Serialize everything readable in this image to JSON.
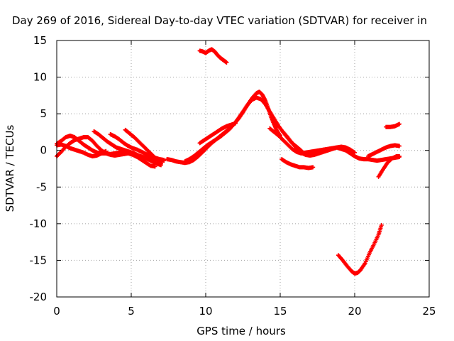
{
  "chart_data": {
    "type": "scatter",
    "title": "Day 269 of 2016, Sidereal Day-to-day VTEC variation (SDTVAR) for receiver in",
    "xlabel": "GPS time / hours",
    "ylabel": "SDTVAR / TECUs",
    "xlim": [
      0,
      25
    ],
    "ylim": [
      -20,
      15
    ],
    "xticks": [
      0,
      5,
      10,
      15,
      20,
      25
    ],
    "yticks": [
      -20,
      -15,
      -10,
      -5,
      0,
      5,
      10,
      15
    ],
    "grid": true,
    "marker_color": "#ff0000",
    "series": [
      {
        "x": [
          0.0,
          0.3,
          0.6,
          0.9,
          1.2,
          1.5,
          1.8,
          2.1,
          2.4,
          2.7,
          3.0,
          3.3,
          3.6,
          3.9,
          4.2,
          4.5,
          4.8,
          5.1,
          5.4,
          5.7,
          6.0,
          6.3,
          6.6,
          6.9,
          7.2
        ],
        "y": [
          0.9,
          1.3,
          1.8,
          2.0,
          1.8,
          1.3,
          0.8,
          0.4,
          0.0,
          -0.3,
          -0.4,
          -0.4,
          -0.5,
          -0.4,
          -0.3,
          -0.2,
          -0.3,
          -0.5,
          -0.7,
          -0.9,
          -1.0,
          -1.1,
          -1.2,
          -1.3,
          -1.4
        ]
      },
      {
        "x": [
          0.0,
          0.3,
          0.6,
          0.9,
          1.2,
          1.5,
          1.8,
          2.1,
          2.4,
          2.7,
          3.0,
          3.3,
          3.6,
          3.9,
          4.2,
          4.5,
          4.8,
          5.1,
          5.4,
          5.7,
          6.0,
          6.3,
          6.6
        ],
        "y": [
          -0.8,
          -0.2,
          0.5,
          1.0,
          1.4,
          1.6,
          1.8,
          1.8,
          1.3,
          0.6,
          0.0,
          -0.4,
          -0.6,
          -0.7,
          -0.6,
          -0.5,
          -0.4,
          -0.6,
          -0.9,
          -1.3,
          -1.7,
          -2.1,
          -2.2
        ]
      },
      {
        "x": [
          0.0,
          0.3,
          0.6,
          0.9,
          1.2,
          1.5,
          1.8,
          2.1,
          2.4,
          2.7,
          3.0,
          3.3
        ],
        "y": [
          0.7,
          0.8,
          0.6,
          0.3,
          0.1,
          -0.1,
          -0.3,
          -0.6,
          -0.8,
          -0.7,
          -0.4,
          -0.1
        ]
      },
      {
        "x": [
          2.5,
          2.8,
          3.1,
          3.4,
          3.7,
          4.0,
          4.3,
          4.6,
          4.9,
          5.2,
          5.5,
          5.8,
          6.1,
          6.4,
          6.7,
          7.0
        ],
        "y": [
          2.6,
          2.2,
          1.7,
          1.2,
          0.8,
          0.4,
          0.2,
          0.0,
          -0.2,
          -0.4,
          -0.7,
          -0.9,
          -1.2,
          -1.5,
          -1.8,
          -2.0
        ]
      },
      {
        "x": [
          3.6,
          3.9,
          4.2,
          4.5,
          4.8,
          5.1,
          5.4,
          5.7,
          6.0,
          6.3,
          6.6,
          6.9,
          7.2
        ],
        "y": [
          2.2,
          1.9,
          1.5,
          1.0,
          0.6,
          0.3,
          0.1,
          -0.2,
          -0.5,
          -0.8,
          -1.0,
          -1.2,
          -1.3
        ]
      },
      {
        "x": [
          4.6,
          4.9,
          5.2,
          5.5,
          5.8,
          6.1,
          6.4,
          6.7,
          7.0
        ],
        "y": [
          2.8,
          2.3,
          1.8,
          1.2,
          0.6,
          0.0,
          -0.6,
          -1.2,
          -1.8
        ]
      },
      {
        "x": [
          7.4,
          7.7,
          8.0,
          8.3,
          8.6,
          8.9,
          9.2,
          9.5,
          9.8,
          10.1,
          10.4,
          10.7,
          11.0,
          11.3,
          11.6,
          11.9,
          12.2,
          12.5,
          12.8,
          13.1,
          13.4,
          13.6,
          13.8,
          14.0,
          14.2,
          14.4,
          14.6,
          14.8,
          15.0
        ],
        "y": [
          -1.2,
          -1.3,
          -1.5,
          -1.6,
          -1.7,
          -1.6,
          -1.3,
          -0.8,
          -0.2,
          0.4,
          1.0,
          1.5,
          2.0,
          2.5,
          3.0,
          3.6,
          4.3,
          5.2,
          6.2,
          7.1,
          7.8,
          8.0,
          7.6,
          6.8,
          5.7,
          4.5,
          3.5,
          2.6,
          2.0
        ]
      },
      {
        "x": [
          8.6,
          8.9,
          9.2,
          9.5,
          9.8,
          10.1,
          10.4,
          10.7,
          11.0,
          11.3,
          11.6,
          11.9,
          12.2,
          12.5,
          12.8,
          13.1,
          13.4,
          13.7,
          14.0,
          14.3,
          14.6,
          14.9,
          15.2,
          15.5,
          15.8,
          16.1,
          16.4
        ],
        "y": [
          -1.5,
          -1.2,
          -0.8,
          -0.3,
          0.2,
          0.7,
          1.1,
          1.5,
          1.9,
          2.4,
          2.9,
          3.6,
          4.4,
          5.3,
          6.2,
          6.9,
          7.2,
          7.0,
          6.3,
          5.3,
          4.3,
          3.3,
          2.5,
          1.7,
          1.0,
          0.5,
          0.0
        ]
      },
      {
        "x": [
          9.6,
          9.9,
          10.2,
          10.5,
          10.8,
          11.1,
          11.4,
          11.7,
          12.0
        ],
        "y": [
          1.0,
          1.4,
          1.8,
          2.2,
          2.6,
          3.0,
          3.3,
          3.5,
          3.7
        ]
      },
      {
        "x": [
          9.6,
          9.8,
          10.0,
          10.2,
          10.4,
          10.6,
          10.8,
          11.0,
          11.2,
          11.4
        ],
        "y": [
          13.6,
          13.5,
          13.3,
          13.6,
          13.8,
          13.5,
          13.0,
          12.6,
          12.3,
          12.0
        ]
      },
      {
        "x": [
          14.3,
          14.6,
          14.9,
          15.2,
          15.5,
          15.8,
          16.1,
          16.4,
          16.7,
          17.0,
          17.3,
          17.6,
          17.9,
          18.2,
          18.5,
          18.8,
          19.1,
          19.4,
          19.7,
          20.0,
          20.3,
          20.6,
          20.9,
          21.2,
          21.5,
          21.8,
          22.1,
          22.4,
          22.7,
          23.0
        ],
        "y": [
          3.0,
          2.5,
          2.0,
          1.4,
          0.8,
          0.2,
          -0.2,
          -0.4,
          -0.3,
          -0.2,
          -0.1,
          0.0,
          0.1,
          0.2,
          0.3,
          0.4,
          0.2,
          0.0,
          -0.4,
          -0.8,
          -1.1,
          -1.2,
          -1.2,
          -1.3,
          -1.4,
          -1.3,
          -1.2,
          -1.1,
          -1.0,
          -0.9
        ]
      },
      {
        "x": [
          15.2,
          15.5,
          15.8,
          16.1,
          16.4,
          16.7,
          17.0,
          17.3,
          17.6,
          17.9,
          18.2,
          18.5,
          18.8,
          19.1,
          19.4,
          19.7,
          20.0
        ],
        "y": [
          2.5,
          1.8,
          1.0,
          0.3,
          -0.3,
          -0.6,
          -0.7,
          -0.6,
          -0.4,
          -0.2,
          0.0,
          0.2,
          0.4,
          0.5,
          0.4,
          0.1,
          -0.3
        ]
      },
      {
        "x": [
          15.1,
          15.4,
          15.7,
          16.0,
          16.3,
          16.6,
          16.9,
          17.2
        ],
        "y": [
          -1.2,
          -1.6,
          -1.9,
          -2.1,
          -2.3,
          -2.3,
          -2.4,
          -2.3
        ]
      },
      {
        "x": [
          18.9,
          19.2,
          19.5,
          19.8,
          20.0,
          20.2,
          20.4,
          20.7,
          21.0,
          21.3,
          21.6,
          21.8
        ],
        "y": [
          -14.3,
          -15.0,
          -15.8,
          -16.5,
          -16.8,
          -16.7,
          -16.3,
          -15.4,
          -14.0,
          -12.8,
          -11.5,
          -10.2
        ]
      },
      {
        "x": [
          20.9,
          21.2,
          21.5,
          21.8,
          22.1,
          22.4,
          22.7,
          23.0
        ],
        "y": [
          -0.8,
          -0.5,
          -0.2,
          0.1,
          0.4,
          0.6,
          0.7,
          0.6
        ]
      },
      {
        "x": [
          21.6,
          21.9,
          22.2,
          22.5,
          22.8,
          23.0
        ],
        "y": [
          -3.6,
          -2.6,
          -1.7,
          -1.1,
          -0.8,
          -0.8
        ]
      },
      {
        "x": [
          22.1,
          22.4,
          22.7,
          23.0
        ],
        "y": [
          3.2,
          3.2,
          3.3,
          3.6
        ]
      }
    ]
  }
}
